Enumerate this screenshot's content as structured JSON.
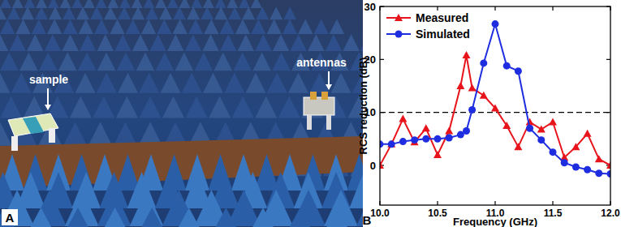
{
  "panel_labels": [
    "A",
    "B"
  ],
  "photo": {
    "labels": [
      "sample",
      "antennas"
    ]
  },
  "chart_data": {
    "type": "line",
    "x_label": "Frequency (GHz)",
    "y_label": "RCS reduction (dB)",
    "xlim": [
      10,
      12
    ],
    "xticks": [
      {
        "value": 10,
        "label": "10.0"
      },
      {
        "value": 10.5,
        "label": "10.5"
      },
      {
        "value": 11,
        "label": "11.0"
      },
      {
        "value": 11.5,
        "label": "11.5"
      },
      {
        "value": 12,
        "label": "12.0"
      }
    ],
    "ylim": [
      -7.5,
      30
    ],
    "yticks": [
      0,
      10,
      20,
      30
    ],
    "grid": false,
    "legend": "upper left",
    "reference_line": {
      "value": 10,
      "line_style": "dashed"
    },
    "series": [
      {
        "name": "Measured",
        "color": "#e8141c",
        "marker": "triangle",
        "line_style": "solid",
        "x": [
          10.0,
          10.1,
          10.2,
          10.3,
          10.4,
          10.5,
          10.6,
          10.7,
          10.75,
          10.8,
          10.9,
          11.0,
          11.1,
          11.2,
          11.3,
          11.4,
          11.5,
          11.6,
          11.7,
          11.8,
          11.9,
          12.0
        ],
        "values": [
          0,
          4,
          8.8,
          4.4,
          7,
          2,
          6.5,
          15,
          20.8,
          14.6,
          13.2,
          10.8,
          7.5,
          3.5,
          8.2,
          6.8,
          8.2,
          1.5,
          3.5,
          6,
          1.2,
          0
        ]
      },
      {
        "name": "Simulated",
        "color": "#1f2de0",
        "marker": "circle",
        "line_style": "solid",
        "x": [
          10.0,
          10.1,
          10.2,
          10.3,
          10.4,
          10.5,
          10.6,
          10.7,
          10.75,
          10.8,
          10.9,
          11.0,
          11.1,
          11.2,
          11.3,
          11.4,
          11.5,
          11.6,
          11.7,
          11.8,
          11.9,
          12.0
        ],
        "values": [
          4,
          4,
          4.5,
          4.8,
          5,
          5,
          5.2,
          5.8,
          6.5,
          10.5,
          19.3,
          26.7,
          18.8,
          17.8,
          7,
          4.8,
          2.5,
          0.5,
          -0.3,
          -0.8,
          -1.5,
          -1.6
        ]
      }
    ]
  }
}
